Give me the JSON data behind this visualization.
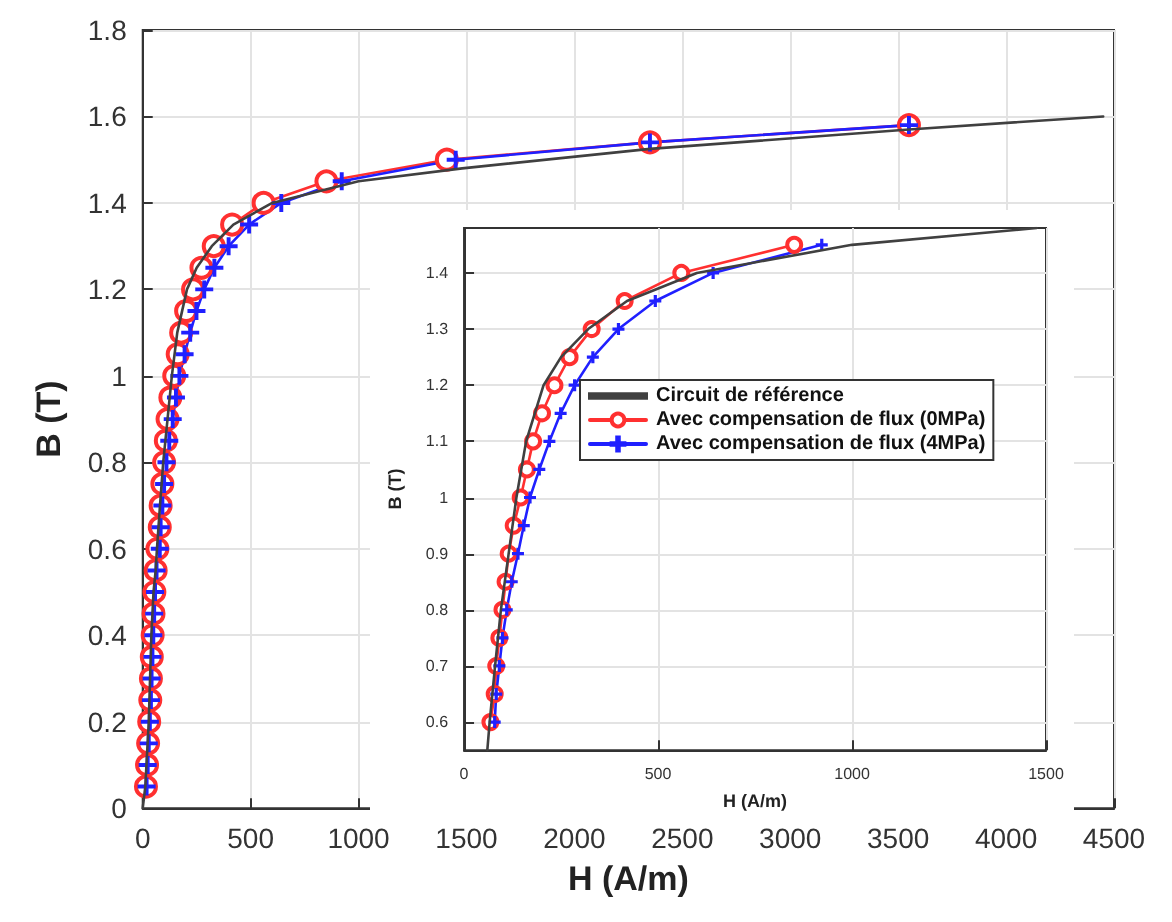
{
  "chart_data": [
    {
      "type": "line",
      "xlabel": "H (A/m)",
      "ylabel": "B (T)",
      "xlim": [
        0,
        4500
      ],
      "xticks": [
        0,
        500,
        1000,
        1500,
        2000,
        2500,
        3000,
        3500,
        4000,
        4500
      ],
      "ylim": [
        0,
        1.8
      ],
      "yticks": [
        0,
        0.2,
        0.4,
        0.6,
        0.8,
        1,
        1.2,
        1.4,
        1.6,
        1.8
      ],
      "grid": true,
      "legend": false,
      "line_style": "solid",
      "series": [
        {
          "color": "#404040",
          "marker": "none",
          "x": [
            0,
            12,
            28,
            40,
            50,
            60,
            66,
            80,
            95,
            115,
            135,
            160,
            205,
            250,
            320,
            420,
            600,
            1000,
            1480,
            2350,
            3550,
            4450
          ],
          "values": [
            0,
            0.05,
            0.2,
            0.4,
            0.5,
            0.55,
            0.6,
            0.7,
            0.8,
            0.9,
            1,
            1.1,
            1.2,
            1.25,
            1.3,
            1.35,
            1.4,
            1.45,
            1.48,
            1.525,
            1.57,
            1.6
          ]
        },
        {
          "color": "#ff3030",
          "marker": "circle",
          "x": [
            15,
            20,
            25,
            30,
            35,
            38,
            42,
            46,
            50,
            54,
            60,
            68,
            79,
            83,
            91,
            99,
            107,
            115,
            128,
            146,
            162,
            178,
            201,
            233,
            272,
            329,
            414,
            560,
            851,
            1409,
            2350,
            3550
          ],
          "values": [
            0.05,
            0.1,
            0.15,
            0.2,
            0.25,
            0.3,
            0.35,
            0.4,
            0.45,
            0.5,
            0.55,
            0.6,
            0.65,
            0.7,
            0.75,
            0.8,
            0.85,
            0.9,
            0.95,
            1,
            1.05,
            1.1,
            1.15,
            1.2,
            1.25,
            1.3,
            1.35,
            1.4,
            1.45,
            1.5,
            1.54,
            1.58
          ]
        },
        {
          "color": "#2020ff",
          "marker": "cross",
          "x": [
            18,
            23,
            28,
            33,
            38,
            41,
            45,
            49,
            53,
            57,
            64,
            79,
            83,
            91,
            99,
            110,
            123,
            139,
            154,
            170,
            194,
            220,
            249,
            285,
            332,
            398,
            493,
            642,
            922,
            1450,
            2350,
            3550
          ],
          "values": [
            0.05,
            0.1,
            0.15,
            0.2,
            0.25,
            0.3,
            0.35,
            0.4,
            0.45,
            0.5,
            0.55,
            0.6,
            0.65,
            0.7,
            0.75,
            0.8,
            0.85,
            0.9,
            0.95,
            1,
            1.05,
            1.1,
            1.15,
            1.2,
            1.25,
            1.3,
            1.35,
            1.4,
            1.45,
            1.5,
            1.54,
            1.58
          ]
        }
      ]
    },
    {
      "type": "line",
      "xlabel": "H (A/m)",
      "ylabel": "B (T)",
      "xlim": [
        0,
        1500
      ],
      "xticks": [
        0,
        500,
        1000,
        1500
      ],
      "ylim": [
        0.55,
        1.48
      ],
      "yticks": [
        0.6,
        0.7,
        0.8,
        0.9,
        1,
        1.1,
        1.2,
        1.3,
        1.4
      ],
      "grid": true,
      "legend": "right",
      "line_style": "solid",
      "series": [
        {
          "name": "Circuit de référence",
          "color": "#404040",
          "marker": "none",
          "x": [
            60,
            66,
            80,
            95,
            115,
            135,
            160,
            205,
            250,
            320,
            420,
            600,
            1000,
            1476
          ],
          "values": [
            0.55,
            0.6,
            0.7,
            0.8,
            0.9,
            1,
            1.1,
            1.2,
            1.25,
            1.3,
            1.35,
            1.4,
            1.45,
            1.48
          ]
        },
        {
          "name": "Avec compensation de flux (0MPa)",
          "color": "#ff3030",
          "marker": "circle",
          "x": [
            68,
            79,
            83,
            91,
            99,
            107,
            115,
            128,
            146,
            162,
            178,
            201,
            233,
            272,
            329,
            414,
            560,
            851
          ],
          "values": [
            0.6,
            0.65,
            0.7,
            0.75,
            0.8,
            0.85,
            0.9,
            0.95,
            1,
            1.05,
            1.1,
            1.15,
            1.2,
            1.25,
            1.3,
            1.35,
            1.4,
            1.45
          ]
        },
        {
          "name": "Avec compensation de flux (4MPa)",
          "color": "#2020ff",
          "marker": "cross",
          "x": [
            79,
            83,
            91,
            99,
            110,
            123,
            139,
            154,
            170,
            194,
            220,
            249,
            285,
            332,
            398,
            493,
            642,
            922
          ],
          "values": [
            0.6,
            0.65,
            0.7,
            0.75,
            0.8,
            0.85,
            0.9,
            0.95,
            1,
            1.05,
            1.1,
            1.15,
            1.2,
            1.25,
            1.3,
            1.35,
            1.4,
            1.45
          ]
        }
      ]
    }
  ]
}
